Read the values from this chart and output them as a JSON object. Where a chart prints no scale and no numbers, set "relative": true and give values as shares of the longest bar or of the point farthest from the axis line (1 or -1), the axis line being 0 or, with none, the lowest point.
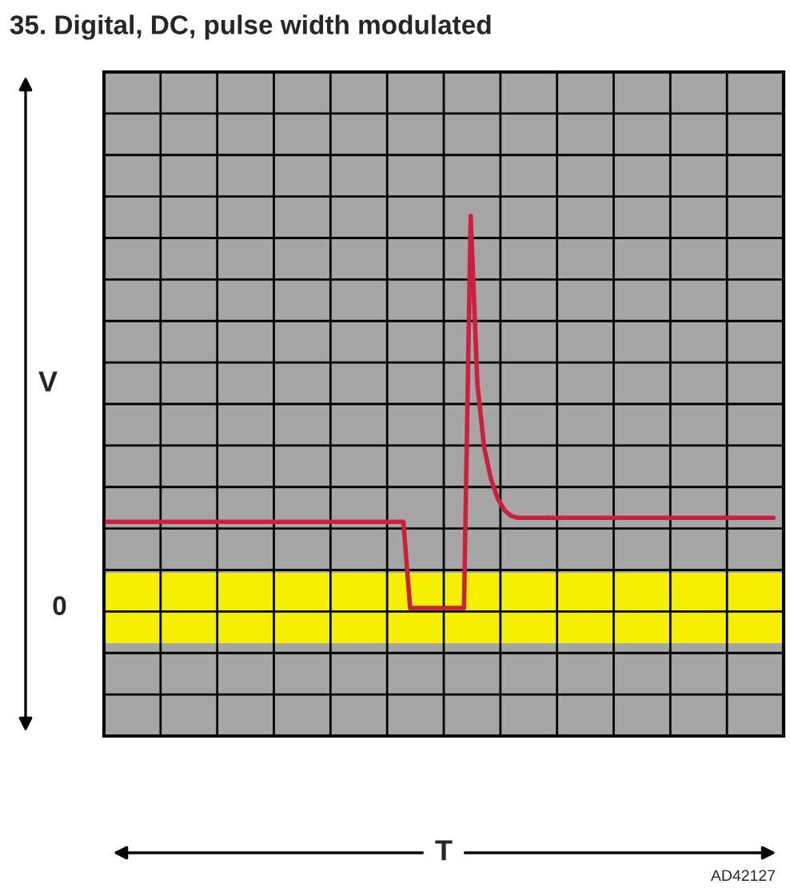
{
  "chart_data": {
    "type": "line",
    "title": "35. Digital, DC, pulse width modulated",
    "ylabel": "V",
    "relative": true,
    "grid": true,
    "categories": [
      null,
      null,
      null,
      null,
      null,
      null,
      null,
      null,
      null,
      null,
      null,
      null,
      null,
      null,
      null,
      null,
      null,
      null,
      null,
      null,
      null,
      null,
      null,
      null,
      null,
      null,
      null,
      null,
      null,
      null,
      null,
      null,
      null,
      null,
      null,
      null,
      null,
      null,
      null,
      null,
      null,
      null,
      null,
      null,
      null,
      null,
      null,
      null,
      null,
      null,
      null,
      null,
      null,
      null,
      null,
      null,
      null,
      null,
      null,
      null,
      null,
      null,
      null,
      null,
      null,
      null,
      null,
      null,
      null,
      null,
      null,
      null,
      null,
      null,
      null,
      null,
      null,
      null,
      null,
      null,
      null,
      null,
      null,
      null,
      null,
      null,
      null,
      null,
      null,
      null,
      null,
      null,
      null,
      null,
      null,
      null,
      null,
      null,
      null,
      null
    ],
    "series": [
      {
        "color": "#cc1f3c",
        "values": [
          0.22,
          0.22,
          0.22,
          0.22,
          0.22,
          0.22,
          0.22,
          0.22,
          0.22,
          0.22,
          0.22,
          0.22,
          0.22,
          0.22,
          0.22,
          0.22,
          0.22,
          0.22,
          0.22,
          0.22,
          0.22,
          0.22,
          0.22,
          0.22,
          0.22,
          0.22,
          0.22,
          0.22,
          0.22,
          0.22,
          0.22,
          0.22,
          0.22,
          0.22,
          0.22,
          0.22,
          0.22,
          0.22,
          0.22,
          0.22,
          0.22,
          0.22,
          0.22,
          0.22,
          0.22,
          0,
          0,
          0,
          0,
          0,
          0,
          0,
          0,
          0,
          1,
          0.57,
          0.41,
          0.33,
          0.28,
          0.25,
          0.235,
          0.23,
          0.23,
          0.23,
          0.23,
          0.23,
          0.23,
          0.23,
          0.23,
          0.23,
          0.23,
          0.23,
          0.23,
          0.23,
          0.23,
          0.23,
          0.23,
          0.23,
          0.23,
          0.23,
          0.23,
          0.23,
          0.23,
          0.23,
          0.23,
          0.23,
          0.23,
          0.23,
          0.23,
          0.23,
          0.23,
          0.23,
          0.23,
          0.23,
          0.23,
          0.23,
          0.23,
          0.23,
          0.23,
          0.23
        ]
      }
    ],
    "bands": [
      {
        "axis": "y",
        "from": -0.09,
        "to": 0.09,
        "color": "#f5f000"
      }
    ],
    "annotations": [
      "0",
      "AD42127",
      "T"
    ]
  }
}
